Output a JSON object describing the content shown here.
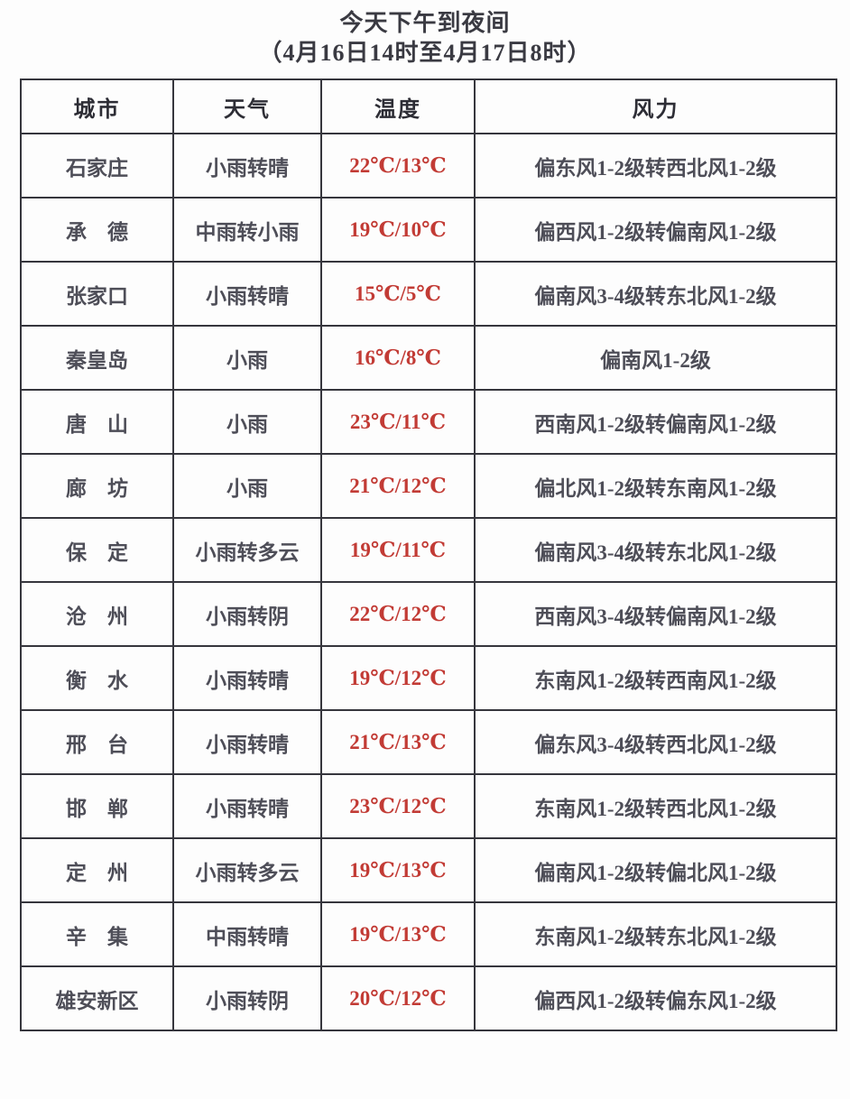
{
  "page": {
    "title": "今天下午到夜间",
    "subtitle": "（4月16日14时至4月17日8时）"
  },
  "colors": {
    "temperature_text": "#c23b35",
    "body_text": "#4e4e58",
    "header_text": "#2d2d35",
    "border": "#36363d",
    "background": "#fdfdfd"
  },
  "chart_data": {
    "type": "table",
    "title": "今天下午到夜间",
    "subtitle": "（4月16日14时至4月17日8时）",
    "columns": [
      "城市",
      "天气",
      "温度",
      "风力"
    ],
    "rows": [
      [
        "石家庄",
        "小雨转晴",
        "22℃/13℃",
        "偏东风1-2级转西北风1-2级"
      ],
      [
        "承　德",
        "中雨转小雨",
        "19℃/10℃",
        "偏西风1-2级转偏南风1-2级"
      ],
      [
        "张家口",
        "小雨转晴",
        "15℃/5℃",
        "偏南风3-4级转东北风1-2级"
      ],
      [
        "秦皇岛",
        "小雨",
        "16℃/8℃",
        "偏南风1-2级"
      ],
      [
        "唐　山",
        "小雨",
        "23℃/11℃",
        "西南风1-2级转偏南风1-2级"
      ],
      [
        "廊　坊",
        "小雨",
        "21℃/12℃",
        "偏北风1-2级转东南风1-2级"
      ],
      [
        "保　定",
        "小雨转多云",
        "19℃/11℃",
        "偏南风3-4级转东北风1-2级"
      ],
      [
        "沧　州",
        "小雨转阴",
        "22℃/12℃",
        "西南风3-4级转偏南风1-2级"
      ],
      [
        "衡　水",
        "小雨转晴",
        "19℃/12℃",
        "东南风1-2级转西南风1-2级"
      ],
      [
        "邢　台",
        "小雨转晴",
        "21℃/13℃",
        "偏东风3-4级转西北风1-2级"
      ],
      [
        "邯　郸",
        "小雨转晴",
        "23℃/12℃",
        "东南风1-2级转西北风1-2级"
      ],
      [
        "定　州",
        "小雨转多云",
        "19℃/13℃",
        "偏南风1-2级转偏北风1-2级"
      ],
      [
        "辛　集",
        "中雨转晴",
        "19℃/13℃",
        "东南风1-2级转东北风1-2级"
      ],
      [
        "雄安新区",
        "小雨转阴",
        "20℃/12℃",
        "偏西风1-2级转偏东风1-2级"
      ]
    ]
  }
}
